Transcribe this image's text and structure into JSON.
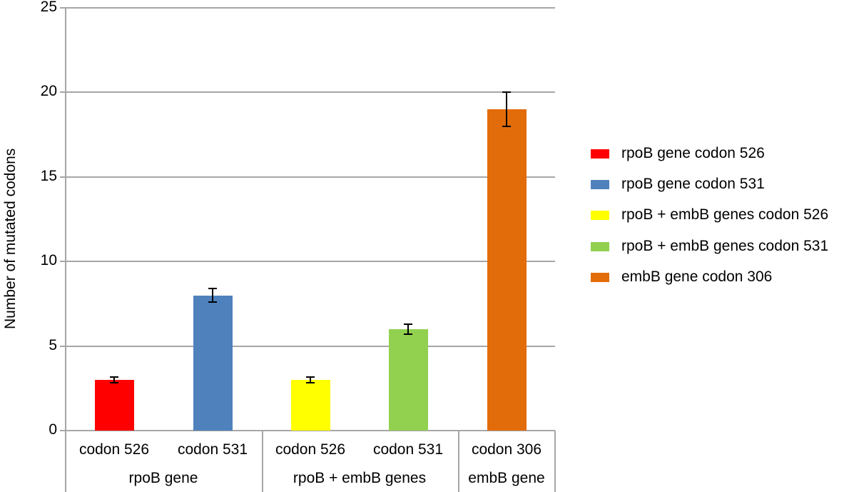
{
  "chart_data": {
    "type": "bar",
    "title": "",
    "xlabel": "",
    "ylabel": "Number of mutated codons",
    "ylim": [
      0,
      25
    ],
    "yticks": [
      0,
      5,
      10,
      15,
      20,
      25
    ],
    "grid": true,
    "legend_position": "right",
    "categories": [
      "codon 526",
      "codon 531",
      "codon 526",
      "codon 531",
      "codon 306"
    ],
    "groups": [
      {
        "label": "rpoB gene",
        "categories": [
          "codon 526",
          "codon 531"
        ]
      },
      {
        "label": "rpoB + embB genes",
        "categories": [
          "codon 526",
          "codon 531"
        ]
      },
      {
        "label": "embB gene",
        "categories": [
          "codon 306"
        ]
      }
    ],
    "series": [
      {
        "name": "rpoB gene codon 526",
        "color": "#ff0000",
        "value": 3,
        "error": 0.15
      },
      {
        "name": "rpoB gene codon 531",
        "color": "#4f81bd",
        "value": 8,
        "error": 0.4
      },
      {
        "name": "rpoB + embB genes codon 526",
        "color": "#ffff00",
        "value": 3,
        "error": 0.15
      },
      {
        "name": "rpoB + embB genes codon 531",
        "color": "#92d050",
        "value": 6,
        "error": 0.3
      },
      {
        "name": "embB gene codon 306",
        "color": "#e36c0a",
        "value": 19,
        "error": 1
      }
    ],
    "values": [
      3,
      8,
      3,
      6,
      19
    ]
  },
  "axis": {
    "ylabel": "Number of mutated codons",
    "ticks": [
      "0",
      "5",
      "10",
      "15",
      "20",
      "25"
    ]
  },
  "xaxis": {
    "categories": [
      "codon 526",
      "codon 531",
      "codon 526",
      "codon 531",
      "codon 306"
    ],
    "groups": [
      "rpoB gene",
      "rpoB + embB genes",
      "embB gene"
    ]
  },
  "legend": [
    {
      "label": "rpoB gene codon 526",
      "color": "#ff0000"
    },
    {
      "label": "rpoB gene codon 531",
      "color": "#4f81bd"
    },
    {
      "label": "rpoB + embB genes codon 526",
      "color": "#ffff00"
    },
    {
      "label": "rpoB + embB genes codon 531",
      "color": "#92d050"
    },
    {
      "label": "embB gene codon 306",
      "color": "#e36c0a"
    }
  ]
}
